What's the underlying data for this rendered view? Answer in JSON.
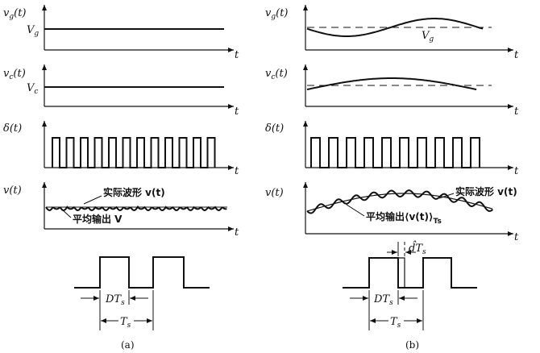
{
  "panel_a": {
    "caption": "(a)",
    "rows": {
      "vg": {
        "label": "v",
        "label_sub": "g",
        "label_arg": "(t)",
        "level_label": "V",
        "level_sub": "g",
        "axis_t": "t"
      },
      "vc": {
        "label": "v",
        "label_sub": "c",
        "label_arg": "(t)",
        "level_label": "V",
        "level_sub": "c",
        "axis_t": "t"
      },
      "delta": {
        "label": "δ(t)",
        "axis_t": "t",
        "pulse_count": 12
      },
      "v": {
        "label": "v(t)",
        "axis_t": "t",
        "actual_text": "实际波形 v(t)",
        "average_text": "平均输出 V"
      }
    },
    "timing": {
      "dts_label": "DT",
      "dts_sub": "s",
      "ts_label": "T",
      "ts_sub": "s"
    }
  },
  "panel_b": {
    "caption": "(b)",
    "rows": {
      "vg": {
        "label": "v",
        "label_sub": "g",
        "label_arg": "(t)",
        "level_label": "V",
        "level_sub": "g",
        "axis_t": "t"
      },
      "vc": {
        "label": "v",
        "label_sub": "c",
        "label_arg": "(t)",
        "axis_t": "t"
      },
      "delta": {
        "label": "δ(t)",
        "axis_t": "t",
        "pulse_count": 10
      },
      "v": {
        "label": "v(t)",
        "axis_t": "t",
        "actual_text": "实际波形 v(t)",
        "average_text": "平均输出⟨v(t)⟩",
        "average_sub": "Ts"
      }
    },
    "timing": {
      "dhat_label": "d̂T",
      "dhat_sub": "s",
      "dts_label": "DT",
      "dts_sub": "s",
      "ts_label": "T",
      "ts_sub": "s"
    }
  },
  "colors": {
    "ink": "#111111",
    "background": "#ffffff"
  }
}
